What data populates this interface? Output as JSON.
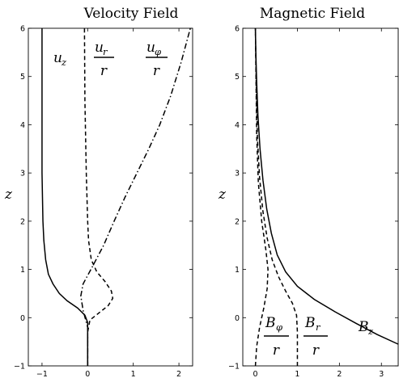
{
  "chart_data": [
    {
      "type": "line",
      "title": "Velocity Field",
      "xlim": [
        -1.3,
        2.3
      ],
      "ylim": [
        -1,
        6
      ],
      "xticks": [
        "−1",
        "0",
        "1",
        "2"
      ],
      "yticks": [
        "−1",
        "0",
        "1",
        "2",
        "3",
        "4",
        "5",
        "6"
      ],
      "ylabel": "z",
      "grid": false,
      "series": [
        {
          "name": "u_z",
          "style": "solid",
          "x": [
            0,
            0,
            0,
            -0.06,
            -0.22,
            -0.45,
            -0.62,
            -0.76,
            -0.86,
            -0.92,
            -0.96,
            -0.98,
            -0.99,
            -1.0,
            -1.0,
            -1.0
          ],
          "y": [
            -1,
            -0.6,
            -0.1,
            0.05,
            0.2,
            0.35,
            0.5,
            0.7,
            0.9,
            1.2,
            1.6,
            2.0,
            2.5,
            3.0,
            4.5,
            6.0
          ]
        },
        {
          "name": "u_r / r",
          "style": "dashed",
          "x": [
            0,
            0,
            0.05,
            0.25,
            0.45,
            0.55,
            0.52,
            0.38,
            0.2,
            0.08,
            0.02,
            0,
            -0.03,
            -0.06,
            -0.07
          ],
          "y": [
            -1,
            -0.3,
            -0.05,
            0.1,
            0.25,
            0.4,
            0.55,
            0.75,
            0.95,
            1.2,
            1.6,
            2.0,
            3.0,
            4.5,
            6.0
          ]
        },
        {
          "name": "u_φ / r",
          "style": "dashdot",
          "x": [
            0,
            0,
            -0.1,
            -0.15,
            -0.1,
            0.1,
            0.35,
            0.58,
            0.82,
            1.08,
            1.34,
            1.58,
            1.82,
            2.05,
            2.25
          ],
          "y": [
            -1,
            -0.2,
            0.15,
            0.45,
            0.7,
            1.05,
            1.5,
            2.0,
            2.5,
            3.0,
            3.5,
            4.0,
            4.6,
            5.3,
            6.0
          ]
        }
      ],
      "labels": [
        {
          "base": "u",
          "sub": "z",
          "fraction": false
        },
        {
          "base": "u",
          "sub": "r",
          "fraction": true,
          "denominator": "r"
        },
        {
          "base": "u",
          "sub": "φ",
          "fraction": true,
          "denominator": "r"
        }
      ]
    },
    {
      "type": "line",
      "title": "Magnetic Field",
      "xlim": [
        -0.3,
        3.4
      ],
      "ylim": [
        -1,
        6
      ],
      "xticks": [
        "0",
        "1",
        "2",
        "3"
      ],
      "yticks": [
        "−1",
        "0",
        "1",
        "2",
        "3",
        "4",
        "5",
        "6"
      ],
      "ylabel": "z",
      "grid": false,
      "series": [
        {
          "name": "B_z",
          "style": "solid",
          "x": [
            3.4,
            2.9,
            2.4,
            1.9,
            1.4,
            1.0,
            0.72,
            0.52,
            0.38,
            0.27,
            0.18,
            0.11,
            0.06,
            0.03,
            0.01,
            0.0
          ],
          "y": [
            -0.55,
            -0.35,
            -0.12,
            0.12,
            0.38,
            0.65,
            0.95,
            1.3,
            1.75,
            2.25,
            2.85,
            3.5,
            4.2,
            4.9,
            5.5,
            6.0
          ]
        },
        {
          "name": "B_r / r",
          "style": "dashed",
          "x": [
            1.0,
            1.0,
            0.98,
            0.88,
            0.72,
            0.55,
            0.4,
            0.28,
            0.18,
            0.1,
            0.05,
            0.02,
            0.0
          ],
          "y": [
            -1,
            -0.3,
            0.05,
            0.3,
            0.55,
            0.85,
            1.2,
            1.65,
            2.2,
            2.9,
            3.7,
            4.8,
            6.0
          ]
        },
        {
          "name": "B_φ / r",
          "style": "dashed",
          "x": [
            0,
            0.03,
            0.1,
            0.2,
            0.28,
            0.3,
            0.25,
            0.15,
            0.07,
            0.03,
            0.0
          ],
          "y": [
            -1,
            -0.6,
            -0.2,
            0.2,
            0.6,
            1.0,
            1.4,
            2.0,
            2.8,
            3.8,
            6.0
          ]
        }
      ],
      "labels": [
        {
          "base": "B",
          "sub": "z",
          "fraction": false
        },
        {
          "base": "B",
          "sub": "r",
          "fraction": true,
          "denominator": "r"
        },
        {
          "base": "B",
          "sub": "φ",
          "fraction": true,
          "denominator": "r"
        }
      ]
    }
  ]
}
